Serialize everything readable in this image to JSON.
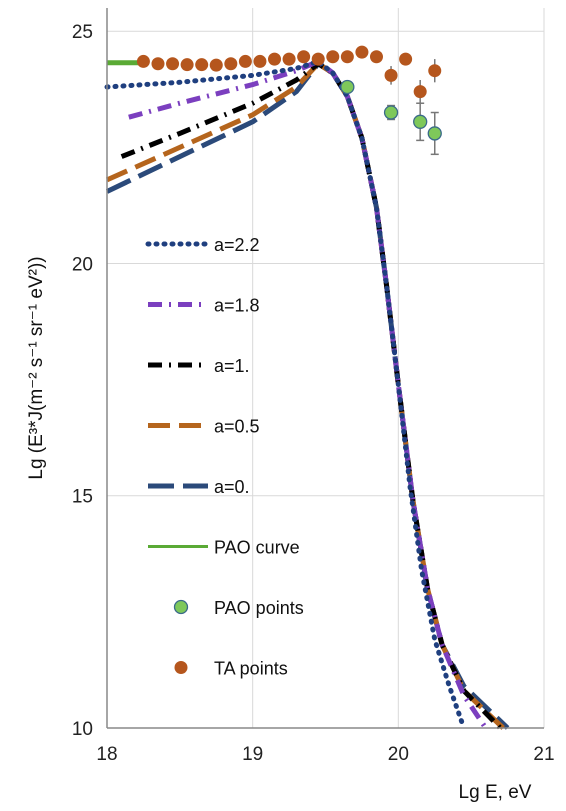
{
  "chart_data": {
    "type": "line",
    "xlabel": "Lg E, eV",
    "ylabel": "Lg (E³*J(m⁻² s⁻¹ sr⁻¹ eV²))",
    "xlim": [
      18,
      21
    ],
    "ylim": [
      10,
      25.5
    ],
    "x_ticks": [
      18,
      19,
      20,
      21
    ],
    "y_ticks": [
      10,
      15,
      20,
      25
    ],
    "grid": true,
    "legend_position": "left-center",
    "series": [
      {
        "name": "a=2.2",
        "style": "dotted",
        "color": "#1f3f7f",
        "points": [
          [
            18.0,
            23.8
          ],
          [
            18.5,
            23.9
          ],
          [
            19.0,
            24.05
          ],
          [
            19.3,
            24.2
          ],
          [
            19.45,
            24.35
          ],
          [
            19.55,
            24.1
          ],
          [
            19.65,
            23.6
          ],
          [
            19.75,
            22.7
          ],
          [
            19.85,
            21.2
          ],
          [
            19.92,
            19.5
          ],
          [
            20.0,
            17.4
          ],
          [
            20.08,
            15.2
          ],
          [
            20.16,
            13.4
          ],
          [
            20.25,
            11.9
          ],
          [
            20.35,
            10.9
          ],
          [
            20.45,
            10.0
          ]
        ]
      },
      {
        "name": "a=1.8",
        "style": "dash-dot",
        "color": "#7b3fbf",
        "points": [
          [
            18.15,
            23.15
          ],
          [
            18.5,
            23.45
          ],
          [
            19.0,
            23.85
          ],
          [
            19.3,
            24.15
          ],
          [
            19.45,
            24.35
          ],
          [
            19.55,
            24.1
          ],
          [
            19.65,
            23.6
          ],
          [
            19.75,
            22.7
          ],
          [
            19.85,
            21.2
          ],
          [
            19.92,
            19.5
          ],
          [
            20.0,
            17.4
          ],
          [
            20.1,
            14.9
          ],
          [
            20.2,
            13.0
          ],
          [
            20.3,
            11.8
          ],
          [
            20.45,
            10.7
          ],
          [
            20.6,
            10.0
          ]
        ]
      },
      {
        "name": "a=1.",
        "style": "dash-dot",
        "color": "#000000",
        "points": [
          [
            18.1,
            22.3
          ],
          [
            18.5,
            22.8
          ],
          [
            19.0,
            23.45
          ],
          [
            19.3,
            23.95
          ],
          [
            19.45,
            24.3
          ],
          [
            19.55,
            24.1
          ],
          [
            19.65,
            23.6
          ],
          [
            19.75,
            22.7
          ],
          [
            19.85,
            21.2
          ],
          [
            19.92,
            19.5
          ],
          [
            20.0,
            17.4
          ],
          [
            20.1,
            14.9
          ],
          [
            20.2,
            13.0
          ],
          [
            20.3,
            11.8
          ],
          [
            20.45,
            10.8
          ],
          [
            20.7,
            10.0
          ]
        ]
      },
      {
        "name": "a=0.5",
        "style": "dashed",
        "color": "#b5651d",
        "points": [
          [
            18.0,
            21.8
          ],
          [
            18.5,
            22.5
          ],
          [
            19.0,
            23.2
          ],
          [
            19.3,
            23.8
          ],
          [
            19.45,
            24.3
          ],
          [
            19.55,
            24.1
          ],
          [
            19.65,
            23.6
          ],
          [
            19.75,
            22.7
          ],
          [
            19.85,
            21.2
          ],
          [
            19.92,
            19.5
          ],
          [
            20.0,
            17.4
          ],
          [
            20.1,
            14.9
          ],
          [
            20.2,
            13.0
          ],
          [
            20.3,
            11.8
          ],
          [
            20.45,
            10.8
          ],
          [
            20.72,
            10.0
          ]
        ]
      },
      {
        "name": "a=0.",
        "style": "long-dash",
        "color": "#2b4a7a",
        "points": [
          [
            18.0,
            21.55
          ],
          [
            18.5,
            22.3
          ],
          [
            19.0,
            23.05
          ],
          [
            19.3,
            23.7
          ],
          [
            19.45,
            24.3
          ],
          [
            19.55,
            24.1
          ],
          [
            19.65,
            23.6
          ],
          [
            19.75,
            22.7
          ],
          [
            19.85,
            21.2
          ],
          [
            19.92,
            19.5
          ],
          [
            20.0,
            17.4
          ],
          [
            20.1,
            14.9
          ],
          [
            20.2,
            13.0
          ],
          [
            20.3,
            11.8
          ],
          [
            20.45,
            10.9
          ],
          [
            20.75,
            10.0
          ]
        ]
      },
      {
        "name": "PAO curve",
        "style": "solid",
        "color": "#5aaa35",
        "points": [
          [
            18.0,
            24.32
          ],
          [
            18.22,
            24.32
          ]
        ]
      }
    ],
    "points_series": [
      {
        "name": "PAO points",
        "color": "#7ec85a",
        "stroke": "#3a6a8a",
        "points": [
          {
            "x": 19.65,
            "y": 23.8,
            "err": 0.0
          },
          {
            "x": 19.95,
            "y": 23.25,
            "err": 0.15
          },
          {
            "x": 20.15,
            "y": 23.05,
            "err": 0.4
          },
          {
            "x": 20.25,
            "y": 22.8,
            "err": 0.45
          }
        ]
      },
      {
        "name": "TA points",
        "color": "#b5561d",
        "points": [
          {
            "x": 18.25,
            "y": 24.35,
            "err": 0
          },
          {
            "x": 18.35,
            "y": 24.3,
            "err": 0
          },
          {
            "x": 18.45,
            "y": 24.3,
            "err": 0
          },
          {
            "x": 18.55,
            "y": 24.28,
            "err": 0
          },
          {
            "x": 18.65,
            "y": 24.28,
            "err": 0
          },
          {
            "x": 18.75,
            "y": 24.27,
            "err": 0
          },
          {
            "x": 18.85,
            "y": 24.3,
            "err": 0
          },
          {
            "x": 18.95,
            "y": 24.35,
            "err": 0
          },
          {
            "x": 19.05,
            "y": 24.35,
            "err": 0
          },
          {
            "x": 19.15,
            "y": 24.4,
            "err": 0
          },
          {
            "x": 19.25,
            "y": 24.4,
            "err": 0
          },
          {
            "x": 19.35,
            "y": 24.45,
            "err": 0
          },
          {
            "x": 19.45,
            "y": 24.4,
            "err": 0
          },
          {
            "x": 19.55,
            "y": 24.45,
            "err": 0
          },
          {
            "x": 19.65,
            "y": 24.45,
            "err": 0
          },
          {
            "x": 19.75,
            "y": 24.55,
            "err": 0
          },
          {
            "x": 19.85,
            "y": 24.45,
            "err": 0
          },
          {
            "x": 19.95,
            "y": 24.05,
            "err": 0.2
          },
          {
            "x": 20.05,
            "y": 24.4,
            "err": 0
          },
          {
            "x": 20.15,
            "y": 23.7,
            "err": 0.25
          },
          {
            "x": 20.25,
            "y": 24.15,
            "err": 0.25
          }
        ]
      }
    ],
    "legend": [
      {
        "label": "a=2.2",
        "kind": "line",
        "ref": 0
      },
      {
        "label": "a=1.8",
        "kind": "line",
        "ref": 1
      },
      {
        "label": "a=1.",
        "kind": "line",
        "ref": 2
      },
      {
        "label": "a=0.5",
        "kind": "line",
        "ref": 3
      },
      {
        "label": "a=0.",
        "kind": "line",
        "ref": 4
      },
      {
        "label": "PAO curve",
        "kind": "line",
        "ref": 5
      },
      {
        "label": "PAO points",
        "kind": "marker",
        "ref": 0
      },
      {
        "label": "TA points",
        "kind": "marker",
        "ref": 1
      }
    ]
  }
}
